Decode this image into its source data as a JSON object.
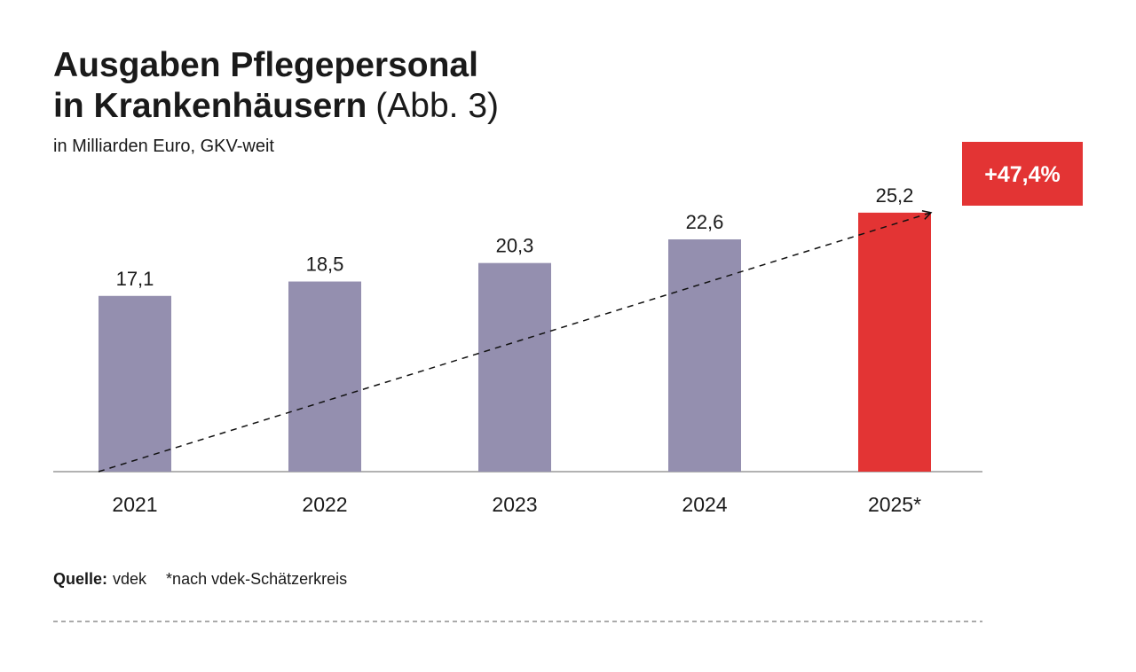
{
  "chart_data": {
    "type": "bar",
    "title_lines": [
      "Ausgaben Pflegepersonal",
      "in Krankenhäusern"
    ],
    "figure_label": "(Abb. 3)",
    "subtitle": "in Milliarden Euro, GKV-weit",
    "categories": [
      "2021",
      "2022",
      "2023",
      "2024",
      "2025*"
    ],
    "values": [
      17.1,
      18.5,
      20.3,
      22.6,
      25.2
    ],
    "value_labels": [
      "17,1",
      "18,5",
      "20,3",
      "22,6",
      "25,2"
    ],
    "colors": [
      "#948faf",
      "#948faf",
      "#948faf",
      "#948faf",
      "#e33434"
    ],
    "ylim": [
      0,
      27
    ],
    "annotation": "+47,4%",
    "annotation_color": "#e33434",
    "source_label": "Quelle:",
    "source": "vdek",
    "footnote": "*nach vdek-Schätzerkreis"
  }
}
